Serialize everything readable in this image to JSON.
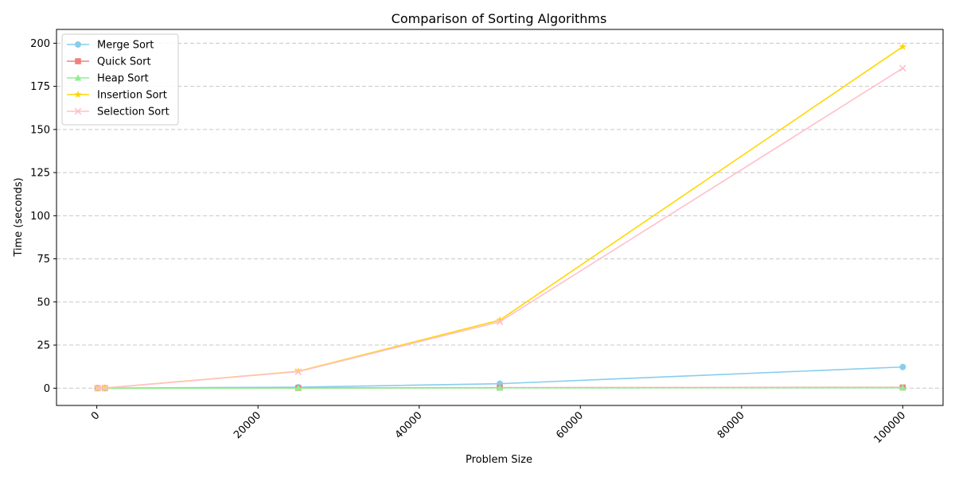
{
  "chart_data": {
    "type": "line",
    "title": "Comparison of Sorting Algorithms",
    "xlabel": "Problem Size",
    "ylabel": "Time (seconds)",
    "xlim": [
      -5000,
      105000
    ],
    "ylim": [
      -10,
      208
    ],
    "x_ticks": [
      0,
      20000,
      40000,
      60000,
      80000,
      100000
    ],
    "y_ticks": [
      0,
      25,
      50,
      75,
      100,
      125,
      150,
      175,
      200
    ],
    "x_tick_rotation": 45,
    "grid": "y-dashed",
    "legend_position": "top-left",
    "x": [
      100,
      1000,
      25000,
      50000,
      100000
    ],
    "series": [
      {
        "name": "Merge Sort",
        "marker": "circle",
        "color": "#87CEEB",
        "values": [
          0.0,
          0.05,
          0.6,
          2.6,
          12.3
        ]
      },
      {
        "name": "Quick Sort",
        "marker": "square",
        "color": "#F08080",
        "values": [
          0.0,
          0.0,
          0.1,
          0.3,
          0.4
        ]
      },
      {
        "name": "Heap Sort",
        "marker": "triangle",
        "color": "#90EE90",
        "values": [
          0.0,
          0.0,
          0.1,
          0.2,
          0.3
        ]
      },
      {
        "name": "Insertion Sort",
        "marker": "star",
        "color": "#FFD700",
        "values": [
          0.0,
          0.1,
          9.8,
          39.5,
          198.0
        ]
      },
      {
        "name": "Selection Sort",
        "marker": "x",
        "color": "#FFC0CB",
        "values": [
          0.0,
          0.1,
          9.6,
          38.5,
          185.5
        ]
      }
    ]
  }
}
